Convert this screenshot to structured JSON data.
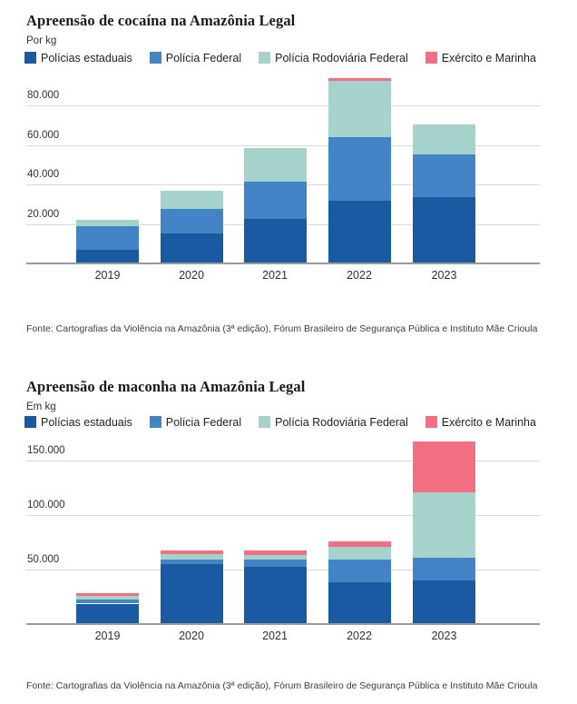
{
  "colors": {
    "policias_estaduais": "#1A5AA2",
    "policia_federal": "#4284C5",
    "policia_rodoviaria_federal": "#A5D2CA",
    "exercito_e_marinha": "#F26F82",
    "gridline": "#D8D8D8",
    "axis_baseline": "#9A9A9A",
    "title_text": "#1A1A1A",
    "body_text": "#2F2F2F"
  },
  "chart_data": [
    {
      "type": "bar",
      "stacked": true,
      "title": "Apreensão de cocaína na Amazônia Legal",
      "subtitle": "Por kg",
      "source": "Fonte: Cartografias da Violência na Amazônia (3ª edição), Fórum Brasileiro de Segurança Pública e Instituto Mãe Crioula",
      "categories": [
        "2019",
        "2020",
        "2021",
        "2022",
        "2023"
      ],
      "series": [
        {
          "name": "Polícias estaduais",
          "color": "#1A5AA2",
          "values": [
            7000,
            15200,
            22500,
            31900,
            33500
          ]
        },
        {
          "name": "Polícia Federal",
          "color": "#4284C5",
          "values": [
            11700,
            12400,
            19000,
            32300,
            21900
          ]
        },
        {
          "name": "Polícia Rodoviária Federal",
          "color": "#A5D2CA",
          "values": [
            3300,
            9100,
            17000,
            28500,
            15300
          ]
        },
        {
          "name": "Exército e Marinha",
          "color": "#F26F82",
          "values": [
            0,
            0,
            0,
            1200,
            0
          ]
        }
      ],
      "ylabel": "kg",
      "ylim": [
        0,
        95000
      ],
      "yticks": [
        {
          "value": 20000,
          "label": "20.000"
        },
        {
          "value": 40000,
          "label": "40.000"
        },
        {
          "value": 60000,
          "label": "60.000"
        },
        {
          "value": 80000,
          "label": "80.000"
        }
      ],
      "grid": "horizontal",
      "legend_position": "top"
    },
    {
      "type": "bar",
      "stacked": true,
      "title": "Apreensão de maconha na Amazônia Legal",
      "subtitle": "Em kg",
      "source": "Fonte: Cartografias da Violência na Amazônia (3ª edição), Fórum Brasileiro de Segurança Pública e Instituto Mãe Crioula",
      "categories": [
        "2019",
        "2020",
        "2021",
        "2022",
        "2023"
      ],
      "series": [
        {
          "name": "Polícias estaduais",
          "color": "#1A5AA2",
          "values": [
            18700,
            55000,
            52200,
            38300,
            39700
          ]
        },
        {
          "name": "Polícia Federal",
          "color": "#4284C5",
          "values": [
            3600,
            4200,
            7000,
            20800,
            20900
          ]
        },
        {
          "name": "Polícia Rodoviária Federal",
          "color": "#A5D2CA",
          "values": [
            3600,
            4700,
            4200,
            11400,
            60600
          ]
        },
        {
          "name": "Exército e Marinha",
          "color": "#F26F82",
          "values": [
            2800,
            3600,
            4500,
            5200,
            46300
          ]
        }
      ],
      "ylabel": "kg",
      "ylim": [
        0,
        170000
      ],
      "yticks": [
        {
          "value": 50000,
          "label": "50.000"
        },
        {
          "value": 100000,
          "label": "100.000"
        },
        {
          "value": 150000,
          "label": "150.000"
        }
      ],
      "grid": "horizontal",
      "legend_position": "top"
    }
  ]
}
